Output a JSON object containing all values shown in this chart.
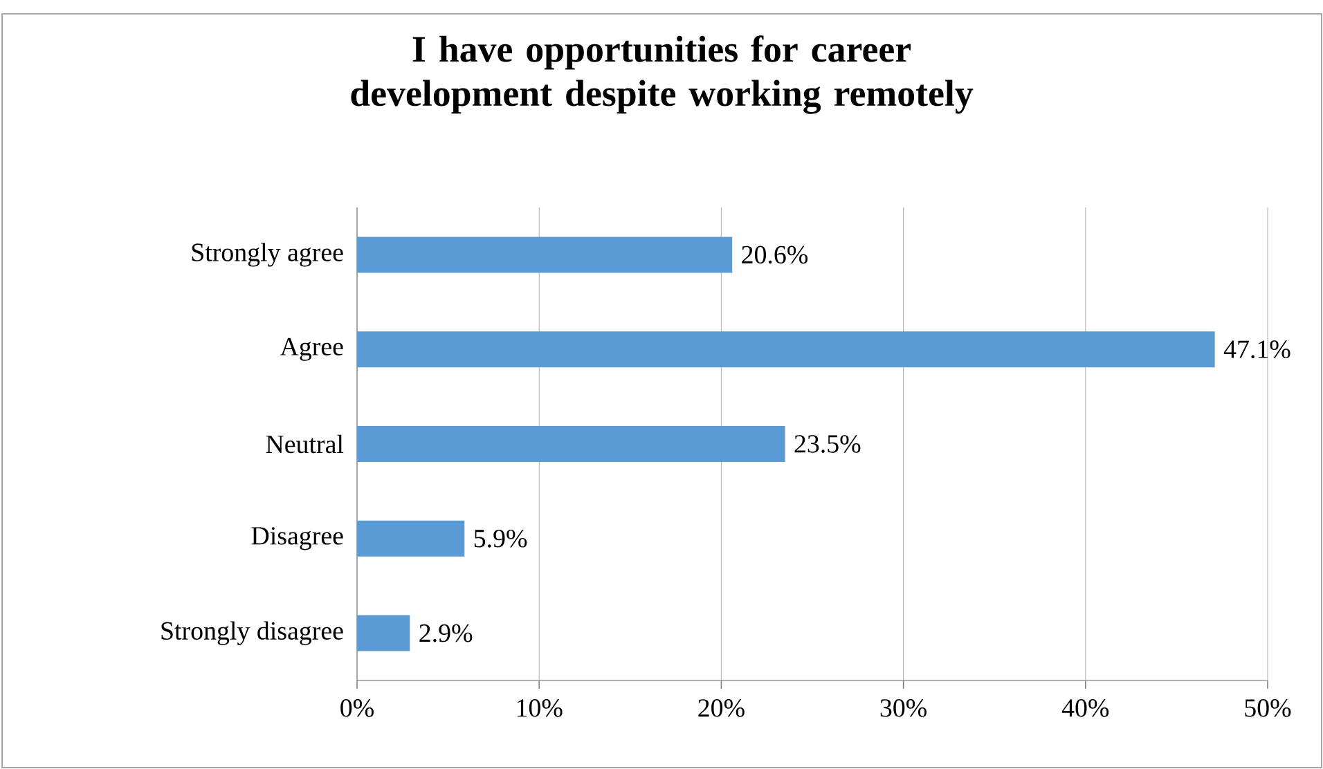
{
  "chart_data": {
    "type": "bar",
    "orientation": "horizontal",
    "title": "I have opportunities for career development despite working remotely",
    "categories": [
      "Strongly agree",
      "Agree",
      "Neutral",
      "Disagree",
      "Strongly disagree"
    ],
    "values": [
      20.6,
      47.1,
      23.5,
      5.9,
      2.9
    ],
    "value_labels": [
      "20.6%",
      "47.1%",
      "23.5%",
      "5.9%",
      "2.9%"
    ],
    "color": "#5b9bd5",
    "xlim": [
      0,
      50
    ],
    "xticks": [
      {
        "value": 0,
        "label": "0%"
      },
      {
        "value": 10,
        "label": "10%"
      },
      {
        "value": 20,
        "label": "20%"
      },
      {
        "value": 30,
        "label": "30%"
      },
      {
        "value": 40,
        "label": "40%"
      },
      {
        "value": 50,
        "label": "50%"
      }
    ],
    "grid": "x"
  }
}
